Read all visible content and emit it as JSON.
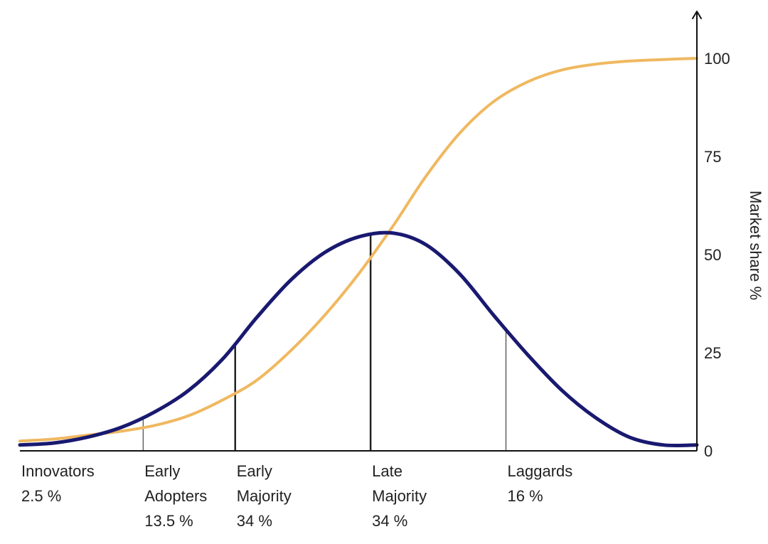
{
  "chart_data": {
    "type": "line",
    "ylabel": "Market share %",
    "ylim": [
      0,
      100
    ],
    "yticks": [
      "0",
      "25",
      "50",
      "75",
      "100"
    ],
    "grid": false,
    "colors": {
      "adoption_curve": "#191970",
      "market_share_curve": "#f0b860",
      "axis": "#111111",
      "divider": "#222222"
    },
    "adoption_distribution": {
      "x": [
        0,
        0.5,
        1,
        1.5,
        2,
        2.5,
        3,
        3.5,
        4,
        4.5,
        5,
        5.5,
        6,
        6.5,
        7,
        7.5,
        8,
        8.5,
        9,
        9.5,
        10
      ],
      "y": [
        1.5,
        2.0,
        3.5,
        6.0,
        10.0,
        15.5,
        23.5,
        34.0,
        43.5,
        50.5,
        54.5,
        55.5,
        52.5,
        45.0,
        34.5,
        24.5,
        15.5,
        8.5,
        3.5,
        1.5,
        1.5
      ]
    },
    "market_share": {
      "x": [
        0,
        0.5,
        1,
        1.5,
        2,
        2.5,
        3,
        3.5,
        4,
        4.5,
        5,
        5.5,
        6,
        6.5,
        7,
        7.5,
        8,
        8.5,
        9,
        9.5,
        10
      ],
      "y": [
        2.5,
        3.0,
        4.0,
        5.0,
        6.5,
        9.0,
        13.0,
        18.0,
        25.5,
        34.5,
        45.0,
        57.0,
        70.0,
        81.0,
        89.0,
        94.0,
        97.0,
        98.5,
        99.3,
        99.7,
        100.0
      ]
    },
    "segments": [
      {
        "name_lines": [
          "Innovators"
        ],
        "share": "2.5 %",
        "boundary_x": 0,
        "divider_x": 1.82
      },
      {
        "name_lines": [
          "Early",
          "Adopters"
        ],
        "share": "13.5 %",
        "boundary_x": 1.82,
        "divider_x": 3.18
      },
      {
        "name_lines": [
          "Early",
          "Majority"
        ],
        "share": "34 %",
        "boundary_x": 3.18,
        "divider_x": 5.18
      },
      {
        "name_lines": [
          "Late",
          "Majority"
        ],
        "share": "34 %",
        "boundary_x": 5.18,
        "divider_x": 7.18
      },
      {
        "name_lines": [
          "Laggards"
        ],
        "share": "16 %",
        "boundary_x": 7.18,
        "divider_x": null
      }
    ]
  }
}
